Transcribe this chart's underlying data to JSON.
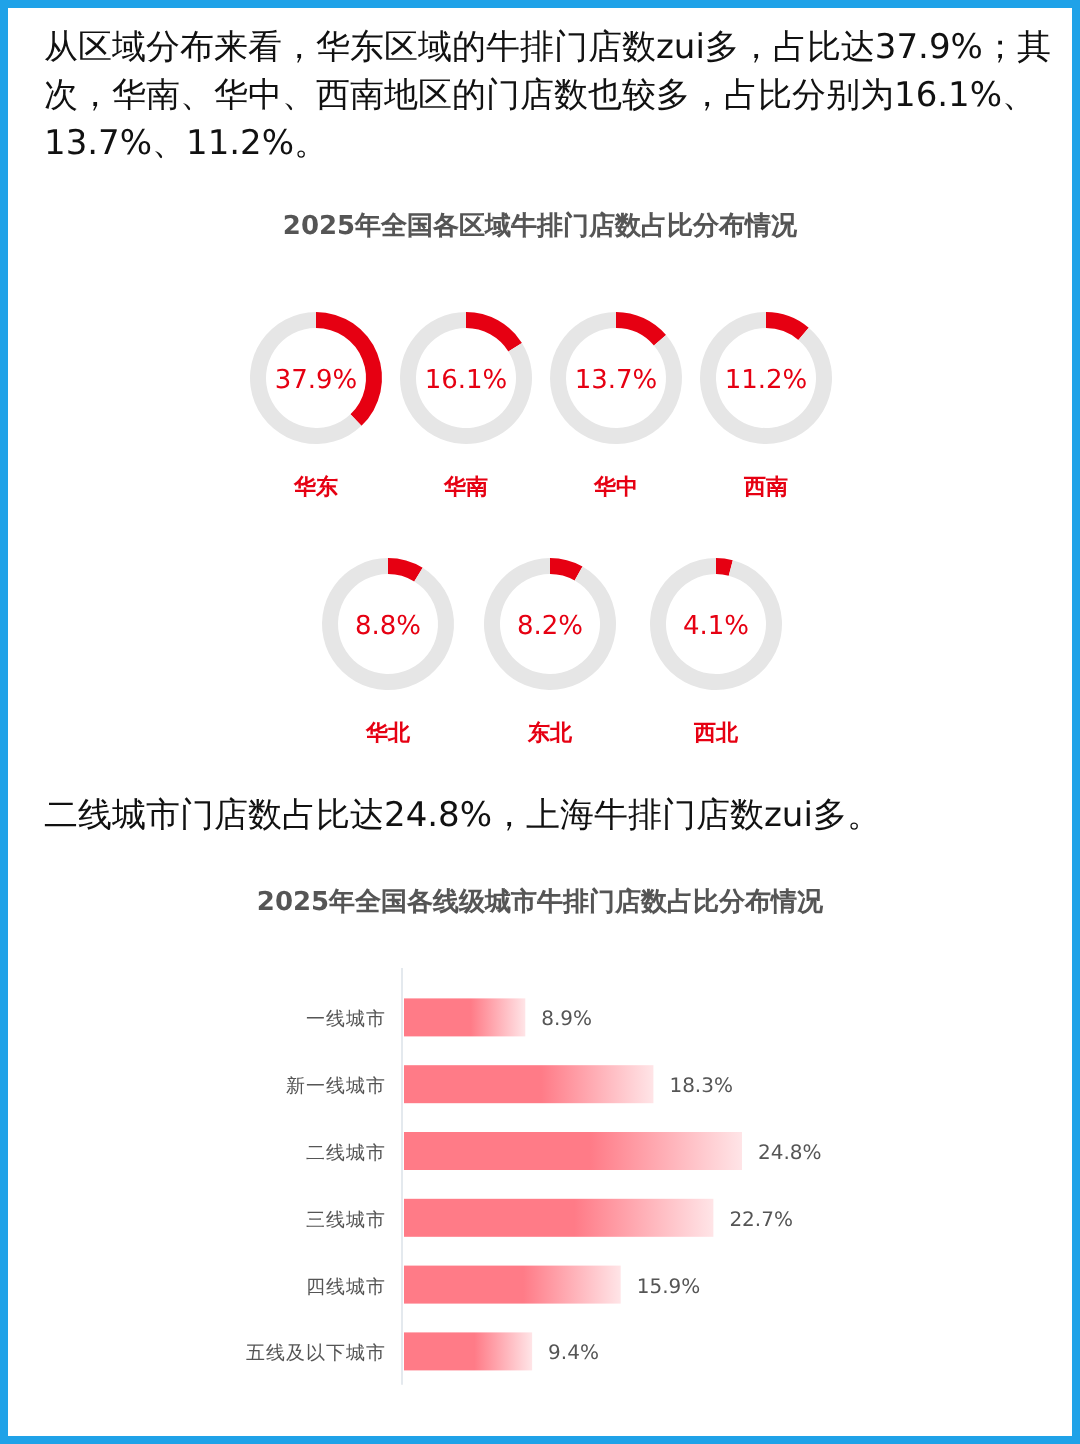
{
  "chart_data": [
    {
      "type": "other",
      "title": "2025年全国各区域牛排门店数占比分布情况",
      "annotations": [
        "从区域分布来看，华东区域的牛排门店数zui多，占比达37.9%；其次，华南、华中、西南地区的门店数也较多，占比分别为16.1%、13.7%、11.2%。"
      ]
    },
    {
      "type": "donut",
      "title": "华东",
      "annotations": [
        "37.9%"
      ],
      "categories": [
        null,
        null
      ],
      "values": [
        37.9,
        62.1
      ],
      "colors": [
        "#e60012",
        "#e6e6e6"
      ]
    },
    {
      "type": "donut",
      "title": "华南",
      "annotations": [
        "16.1%"
      ],
      "categories": [
        null,
        null
      ],
      "values": [
        16.1,
        83.9
      ],
      "colors": [
        "#e60012",
        "#e6e6e6"
      ]
    },
    {
      "type": "donut",
      "title": "华中",
      "annotations": [
        "13.7%"
      ],
      "categories": [
        null,
        null
      ],
      "values": [
        13.7,
        86.3
      ],
      "colors": [
        "#e60012",
        "#e6e6e6"
      ]
    },
    {
      "type": "donut",
      "title": "西南",
      "annotations": [
        "11.2%"
      ],
      "categories": [
        null,
        null
      ],
      "values": [
        11.2,
        88.8
      ],
      "colors": [
        "#e60012",
        "#e6e6e6"
      ]
    },
    {
      "type": "donut",
      "title": "华北",
      "annotations": [
        "8.8%"
      ],
      "categories": [
        null,
        null
      ],
      "values": [
        8.8,
        91.2
      ],
      "colors": [
        "#e60012",
        "#e6e6e6"
      ]
    },
    {
      "type": "donut",
      "title": "东北",
      "annotations": [
        "8.2%"
      ],
      "categories": [
        null,
        null
      ],
      "values": [
        8.2,
        91.8
      ],
      "colors": [
        "#e60012",
        "#e6e6e6"
      ]
    },
    {
      "type": "donut",
      "title": "西北",
      "annotations": [
        "4.1%"
      ],
      "categories": [
        null,
        null
      ],
      "values": [
        4.1,
        95.9
      ],
      "colors": [
        "#e60012",
        "#e6e6e6"
      ]
    },
    {
      "type": "bar",
      "orientation": "horizontal",
      "title": "2025年全国各线级城市牛排门店数占比分布情况",
      "annotations": [
        "二线城市门店数占比达24.8%，上海牛排门店数zui多。"
      ],
      "categories": [
        "一线城市",
        "新一线城市",
        "二线城市",
        "三线城市",
        "四线城市",
        "五线及以下城市"
      ],
      "values": [
        8.9,
        18.3,
        24.8,
        22.7,
        15.9,
        9.4
      ],
      "color": "#ff7b87",
      "value_labels": [
        "8.9%",
        "18.3%",
        "24.8%",
        "22.7%",
        "15.9%",
        "9.4%"
      ]
    }
  ]
}
